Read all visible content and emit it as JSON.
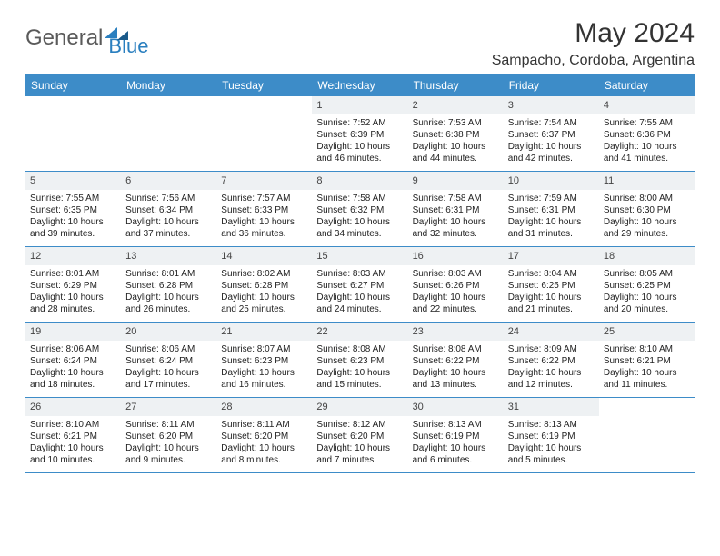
{
  "brand": {
    "part1": "General",
    "part2": "Blue"
  },
  "title": "May 2024",
  "location": "Sampacho, Cordoba, Argentina",
  "colors": {
    "header_bg": "#3d8cc8",
    "header_text": "#ffffff",
    "daynum_bg": "#eef1f3",
    "row_border": "#3d8cc8",
    "brand_gray": "#5a5a5a",
    "brand_blue": "#2a7fbf"
  },
  "dow": [
    "Sunday",
    "Monday",
    "Tuesday",
    "Wednesday",
    "Thursday",
    "Friday",
    "Saturday"
  ],
  "weeks": [
    [
      {
        "n": "",
        "sr": "",
        "ss": "",
        "dl": ""
      },
      {
        "n": "",
        "sr": "",
        "ss": "",
        "dl": ""
      },
      {
        "n": "",
        "sr": "",
        "ss": "",
        "dl": ""
      },
      {
        "n": "1",
        "sr": "7:52 AM",
        "ss": "6:39 PM",
        "dl": "10 hours and 46 minutes."
      },
      {
        "n": "2",
        "sr": "7:53 AM",
        "ss": "6:38 PM",
        "dl": "10 hours and 44 minutes."
      },
      {
        "n": "3",
        "sr": "7:54 AM",
        "ss": "6:37 PM",
        "dl": "10 hours and 42 minutes."
      },
      {
        "n": "4",
        "sr": "7:55 AM",
        "ss": "6:36 PM",
        "dl": "10 hours and 41 minutes."
      }
    ],
    [
      {
        "n": "5",
        "sr": "7:55 AM",
        "ss": "6:35 PM",
        "dl": "10 hours and 39 minutes."
      },
      {
        "n": "6",
        "sr": "7:56 AM",
        "ss": "6:34 PM",
        "dl": "10 hours and 37 minutes."
      },
      {
        "n": "7",
        "sr": "7:57 AM",
        "ss": "6:33 PM",
        "dl": "10 hours and 36 minutes."
      },
      {
        "n": "8",
        "sr": "7:58 AM",
        "ss": "6:32 PM",
        "dl": "10 hours and 34 minutes."
      },
      {
        "n": "9",
        "sr": "7:58 AM",
        "ss": "6:31 PM",
        "dl": "10 hours and 32 minutes."
      },
      {
        "n": "10",
        "sr": "7:59 AM",
        "ss": "6:31 PM",
        "dl": "10 hours and 31 minutes."
      },
      {
        "n": "11",
        "sr": "8:00 AM",
        "ss": "6:30 PM",
        "dl": "10 hours and 29 minutes."
      }
    ],
    [
      {
        "n": "12",
        "sr": "8:01 AM",
        "ss": "6:29 PM",
        "dl": "10 hours and 28 minutes."
      },
      {
        "n": "13",
        "sr": "8:01 AM",
        "ss": "6:28 PM",
        "dl": "10 hours and 26 minutes."
      },
      {
        "n": "14",
        "sr": "8:02 AM",
        "ss": "6:28 PM",
        "dl": "10 hours and 25 minutes."
      },
      {
        "n": "15",
        "sr": "8:03 AM",
        "ss": "6:27 PM",
        "dl": "10 hours and 24 minutes."
      },
      {
        "n": "16",
        "sr": "8:03 AM",
        "ss": "6:26 PM",
        "dl": "10 hours and 22 minutes."
      },
      {
        "n": "17",
        "sr": "8:04 AM",
        "ss": "6:25 PM",
        "dl": "10 hours and 21 minutes."
      },
      {
        "n": "18",
        "sr": "8:05 AM",
        "ss": "6:25 PM",
        "dl": "10 hours and 20 minutes."
      }
    ],
    [
      {
        "n": "19",
        "sr": "8:06 AM",
        "ss": "6:24 PM",
        "dl": "10 hours and 18 minutes."
      },
      {
        "n": "20",
        "sr": "8:06 AM",
        "ss": "6:24 PM",
        "dl": "10 hours and 17 minutes."
      },
      {
        "n": "21",
        "sr": "8:07 AM",
        "ss": "6:23 PM",
        "dl": "10 hours and 16 minutes."
      },
      {
        "n": "22",
        "sr": "8:08 AM",
        "ss": "6:23 PM",
        "dl": "10 hours and 15 minutes."
      },
      {
        "n": "23",
        "sr": "8:08 AM",
        "ss": "6:22 PM",
        "dl": "10 hours and 13 minutes."
      },
      {
        "n": "24",
        "sr": "8:09 AM",
        "ss": "6:22 PM",
        "dl": "10 hours and 12 minutes."
      },
      {
        "n": "25",
        "sr": "8:10 AM",
        "ss": "6:21 PM",
        "dl": "10 hours and 11 minutes."
      }
    ],
    [
      {
        "n": "26",
        "sr": "8:10 AM",
        "ss": "6:21 PM",
        "dl": "10 hours and 10 minutes."
      },
      {
        "n": "27",
        "sr": "8:11 AM",
        "ss": "6:20 PM",
        "dl": "10 hours and 9 minutes."
      },
      {
        "n": "28",
        "sr": "8:11 AM",
        "ss": "6:20 PM",
        "dl": "10 hours and 8 minutes."
      },
      {
        "n": "29",
        "sr": "8:12 AM",
        "ss": "6:20 PM",
        "dl": "10 hours and 7 minutes."
      },
      {
        "n": "30",
        "sr": "8:13 AM",
        "ss": "6:19 PM",
        "dl": "10 hours and 6 minutes."
      },
      {
        "n": "31",
        "sr": "8:13 AM",
        "ss": "6:19 PM",
        "dl": "10 hours and 5 minutes."
      },
      {
        "n": "",
        "sr": "",
        "ss": "",
        "dl": ""
      }
    ]
  ],
  "labels": {
    "sunrise": "Sunrise: ",
    "sunset": "Sunset: ",
    "daylight": "Daylight: "
  }
}
